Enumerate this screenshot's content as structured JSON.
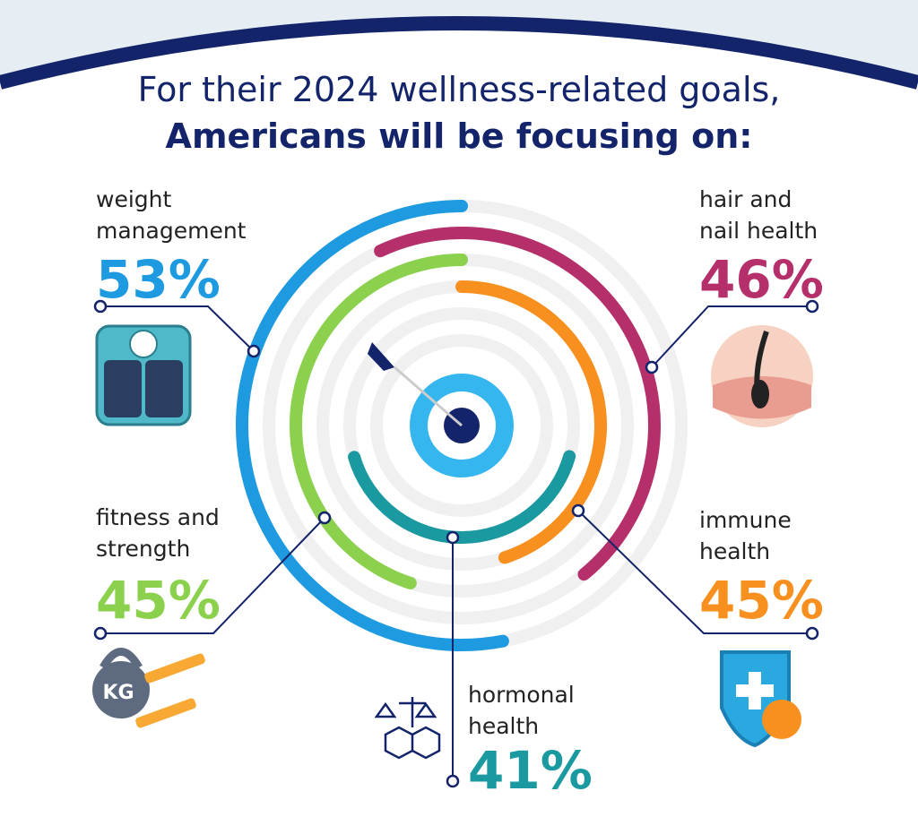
{
  "chart_data": {
    "type": "radial_bar",
    "title": "For their 2024 wellness-related goals,",
    "subtitle": "Americans will be focusing on:",
    "categories": [
      "weight management",
      "hair and nail health",
      "fitness and strength",
      "immune health",
      "hormonal health"
    ],
    "values": [
      53,
      46,
      45,
      45,
      41
    ],
    "value_labels": [
      "53%",
      "46%",
      "45%",
      "45%",
      "41%"
    ],
    "colors": [
      "#1e9be0",
      "#b5306b",
      "#8bd14d",
      "#f7901e",
      "#1a9aa0"
    ]
  }
}
